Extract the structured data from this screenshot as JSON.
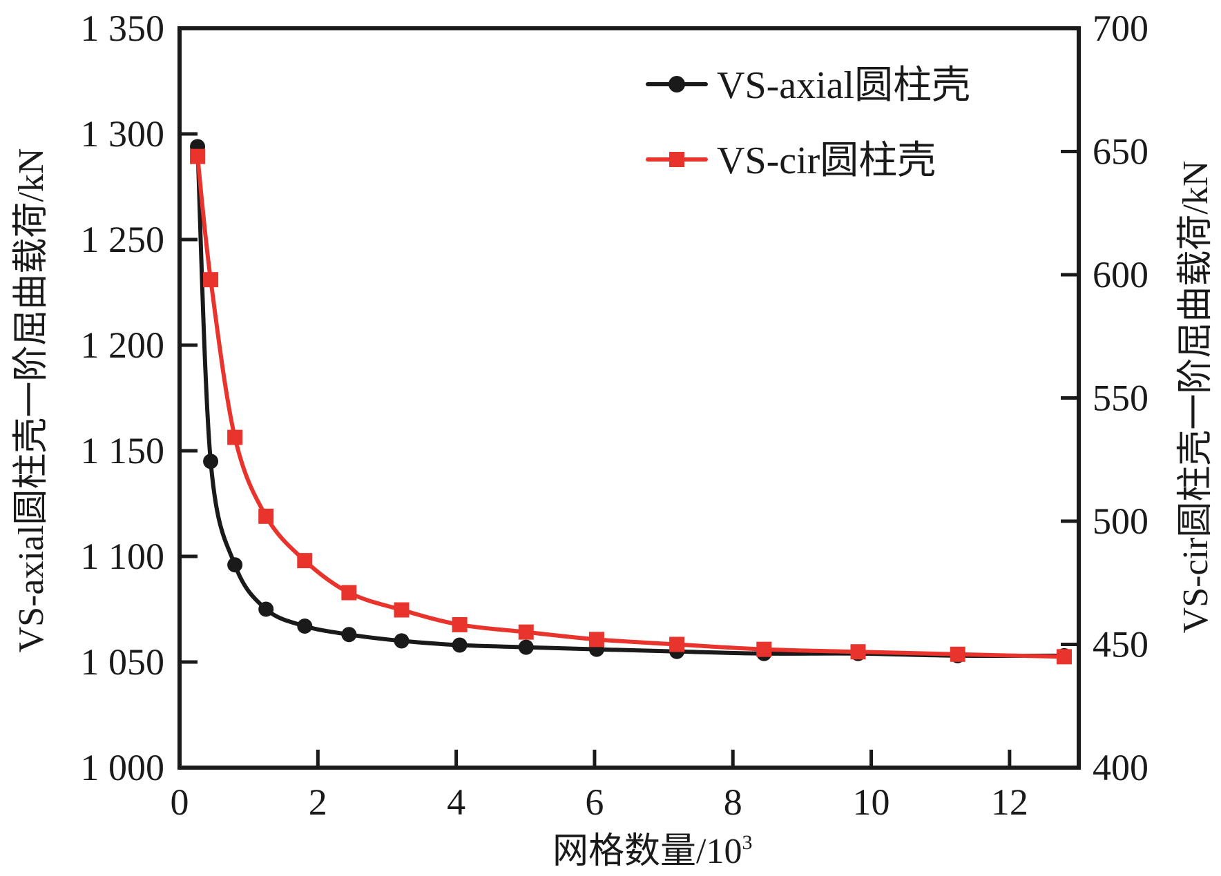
{
  "chart_data": {
    "type": "line",
    "title": "",
    "xlabel": "网格数量/10",
    "xlabel_superscript": "3",
    "ylabel_left": "VS-axial圆柱壳一阶屈曲载荷/kN",
    "ylabel_right": "VS-cir圆柱壳一阶屈曲载荷/kN",
    "xlim": [
      0,
      13
    ],
    "ylim_left": [
      1000,
      1350
    ],
    "ylim_right": [
      400,
      700
    ],
    "x_ticks": [
      0,
      2,
      4,
      6,
      8,
      10,
      12
    ],
    "x_tick_labels": [
      "0",
      "2",
      "4",
      "6",
      "8",
      "10",
      "12"
    ],
    "y_left_ticks": [
      1000,
      1050,
      1100,
      1150,
      1200,
      1250,
      1300,
      1350
    ],
    "y_left_tick_labels": [
      "1 000",
      "1 050",
      "1 100",
      "1 150",
      "1 200",
      "1 250",
      "1 300",
      "1 350"
    ],
    "y_right_ticks": [
      400,
      450,
      500,
      550,
      600,
      650,
      700
    ],
    "y_right_tick_labels": [
      "400",
      "450",
      "500",
      "550",
      "600",
      "650",
      "700"
    ],
    "grid": false,
    "legend_position": "top-right",
    "series": [
      {
        "name": "VS-axial圆柱壳",
        "axis": "left",
        "color": "#1a1a1a",
        "marker": "circle",
        "x": [
          0.26,
          0.45,
          0.8,
          1.25,
          1.81,
          2.45,
          3.21,
          4.05,
          5.01,
          6.03,
          7.19,
          8.45,
          9.81,
          11.25,
          12.79
        ],
        "values": [
          1294,
          1145,
          1096,
          1075,
          1067,
          1063,
          1060,
          1058,
          1057,
          1056,
          1055,
          1054,
          1054,
          1053,
          1053
        ]
      },
      {
        "name": "VS-cir圆柱壳",
        "axis": "right",
        "color": "#e8342c",
        "marker": "square",
        "x": [
          0.26,
          0.45,
          0.8,
          1.25,
          1.81,
          2.45,
          3.21,
          4.05,
          5.01,
          6.03,
          7.19,
          8.45,
          9.81,
          11.25,
          12.79
        ],
        "values": [
          648,
          598,
          534,
          502,
          484,
          471,
          464,
          458,
          455,
          452,
          450,
          448,
          447,
          446,
          445
        ]
      }
    ]
  }
}
